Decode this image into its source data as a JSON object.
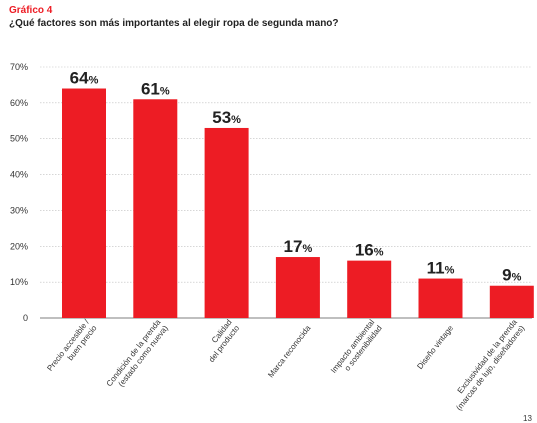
{
  "header": {
    "figure_label": "Gráfico 4",
    "title": "¿Qué factores son más importantes al elegir ropa de segunda mano?"
  },
  "page_number": "13",
  "chart_data": {
    "type": "bar",
    "categories": [
      [
        "Precio accesible /",
        "buen precio"
      ],
      [
        "Condición de la prenda",
        "(estado como nueva)"
      ],
      [
        "Calidad",
        "del producto"
      ],
      [
        "Marca reconocida"
      ],
      [
        "Impacto ambiental",
        "o sostenibilidad"
      ],
      [
        "Diseño vintage"
      ],
      [
        "Exclusividad de la prenda",
        "(marcas de lujo, diseñadores)"
      ]
    ],
    "values": [
      64,
      61,
      53,
      17,
      16,
      11,
      9
    ],
    "value_labels": [
      "64",
      "61",
      "53",
      "17",
      "16",
      "11",
      "9"
    ],
    "value_suffix": "%",
    "yticks": [
      "0",
      "10%",
      "20%",
      "30%",
      "40%",
      "50%",
      "60%",
      "70%"
    ],
    "ylim": [
      0,
      70
    ],
    "grid": true,
    "colors": {
      "bar": "#ed1c24",
      "grid": "#bfbfbf",
      "text": "#222222"
    }
  }
}
